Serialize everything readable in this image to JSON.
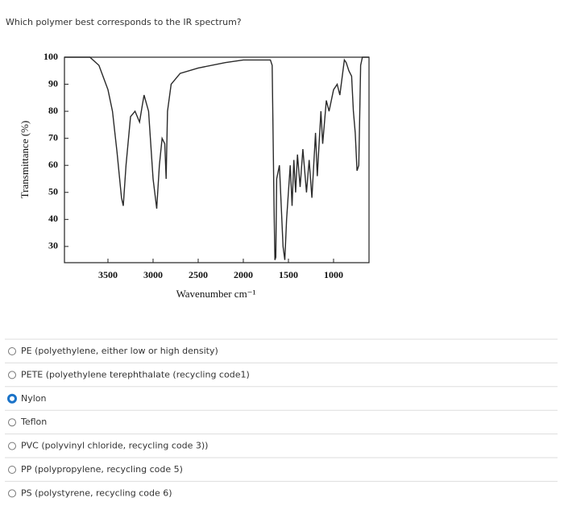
{
  "question": "Which polymer best corresponds to the IR spectrum?",
  "chart_data": {
    "type": "line",
    "x_label": "Wavenumber cm⁻¹",
    "y_label": "Transmittance (%)",
    "x": [
      3982,
      3700,
      3600,
      3500,
      3450,
      3400,
      3350,
      3330,
      3300,
      3250,
      3200,
      3150,
      3120,
      3100,
      3050,
      3000,
      2960,
      2930,
      2900,
      2870,
      2855,
      2840,
      2800,
      2700,
      2500,
      2200,
      2000,
      1700,
      1680,
      1660,
      1650,
      1640,
      1630,
      1600,
      1560,
      1540,
      1520,
      1480,
      1460,
      1440,
      1420,
      1400,
      1370,
      1340,
      1300,
      1270,
      1240,
      1200,
      1180,
      1140,
      1120,
      1080,
      1050,
      1000,
      960,
      930,
      880,
      860,
      830,
      800,
      780,
      760,
      740,
      720,
      700,
      680,
      607
    ],
    "series": [
      {
        "name": "spectrum",
        "color": "#2a2a2a",
        "values": [
          100,
          100,
          97,
          88,
          80,
          65,
          48,
          45,
          60,
          78,
          80,
          76,
          82,
          86,
          80,
          55,
          44,
          60,
          70,
          68,
          55,
          80,
          90,
          94,
          96,
          98,
          99,
          99,
          97,
          45,
          25,
          26,
          55,
          60,
          30,
          25,
          40,
          60,
          45,
          62,
          50,
          64,
          52,
          66,
          50,
          62,
          48,
          72,
          56,
          80,
          68,
          84,
          80,
          88,
          90,
          86,
          99,
          98,
          95,
          93,
          80,
          72,
          58,
          60,
          97,
          100,
          100
        ]
      }
    ],
    "xlim": [
      3982,
      607
    ],
    "xticks": [
      3500,
      3000,
      2500,
      2000,
      1500,
      1000
    ],
    "ylim": [
      24,
      100
    ],
    "yticks": [
      30,
      40,
      50,
      60,
      70,
      80,
      90,
      100
    ]
  },
  "options": [
    "PE (polyethylene, either low or high density)",
    "PETE (polyethylene terephthalate (recycling code1)",
    "Nylon",
    "Teflon",
    "PVC (polyvinyl chloride, recycling code 3))",
    "PP (polypropylene, recycling code 5)",
    "PS (polystyrene, recycling code 6)"
  ],
  "selected": 2
}
